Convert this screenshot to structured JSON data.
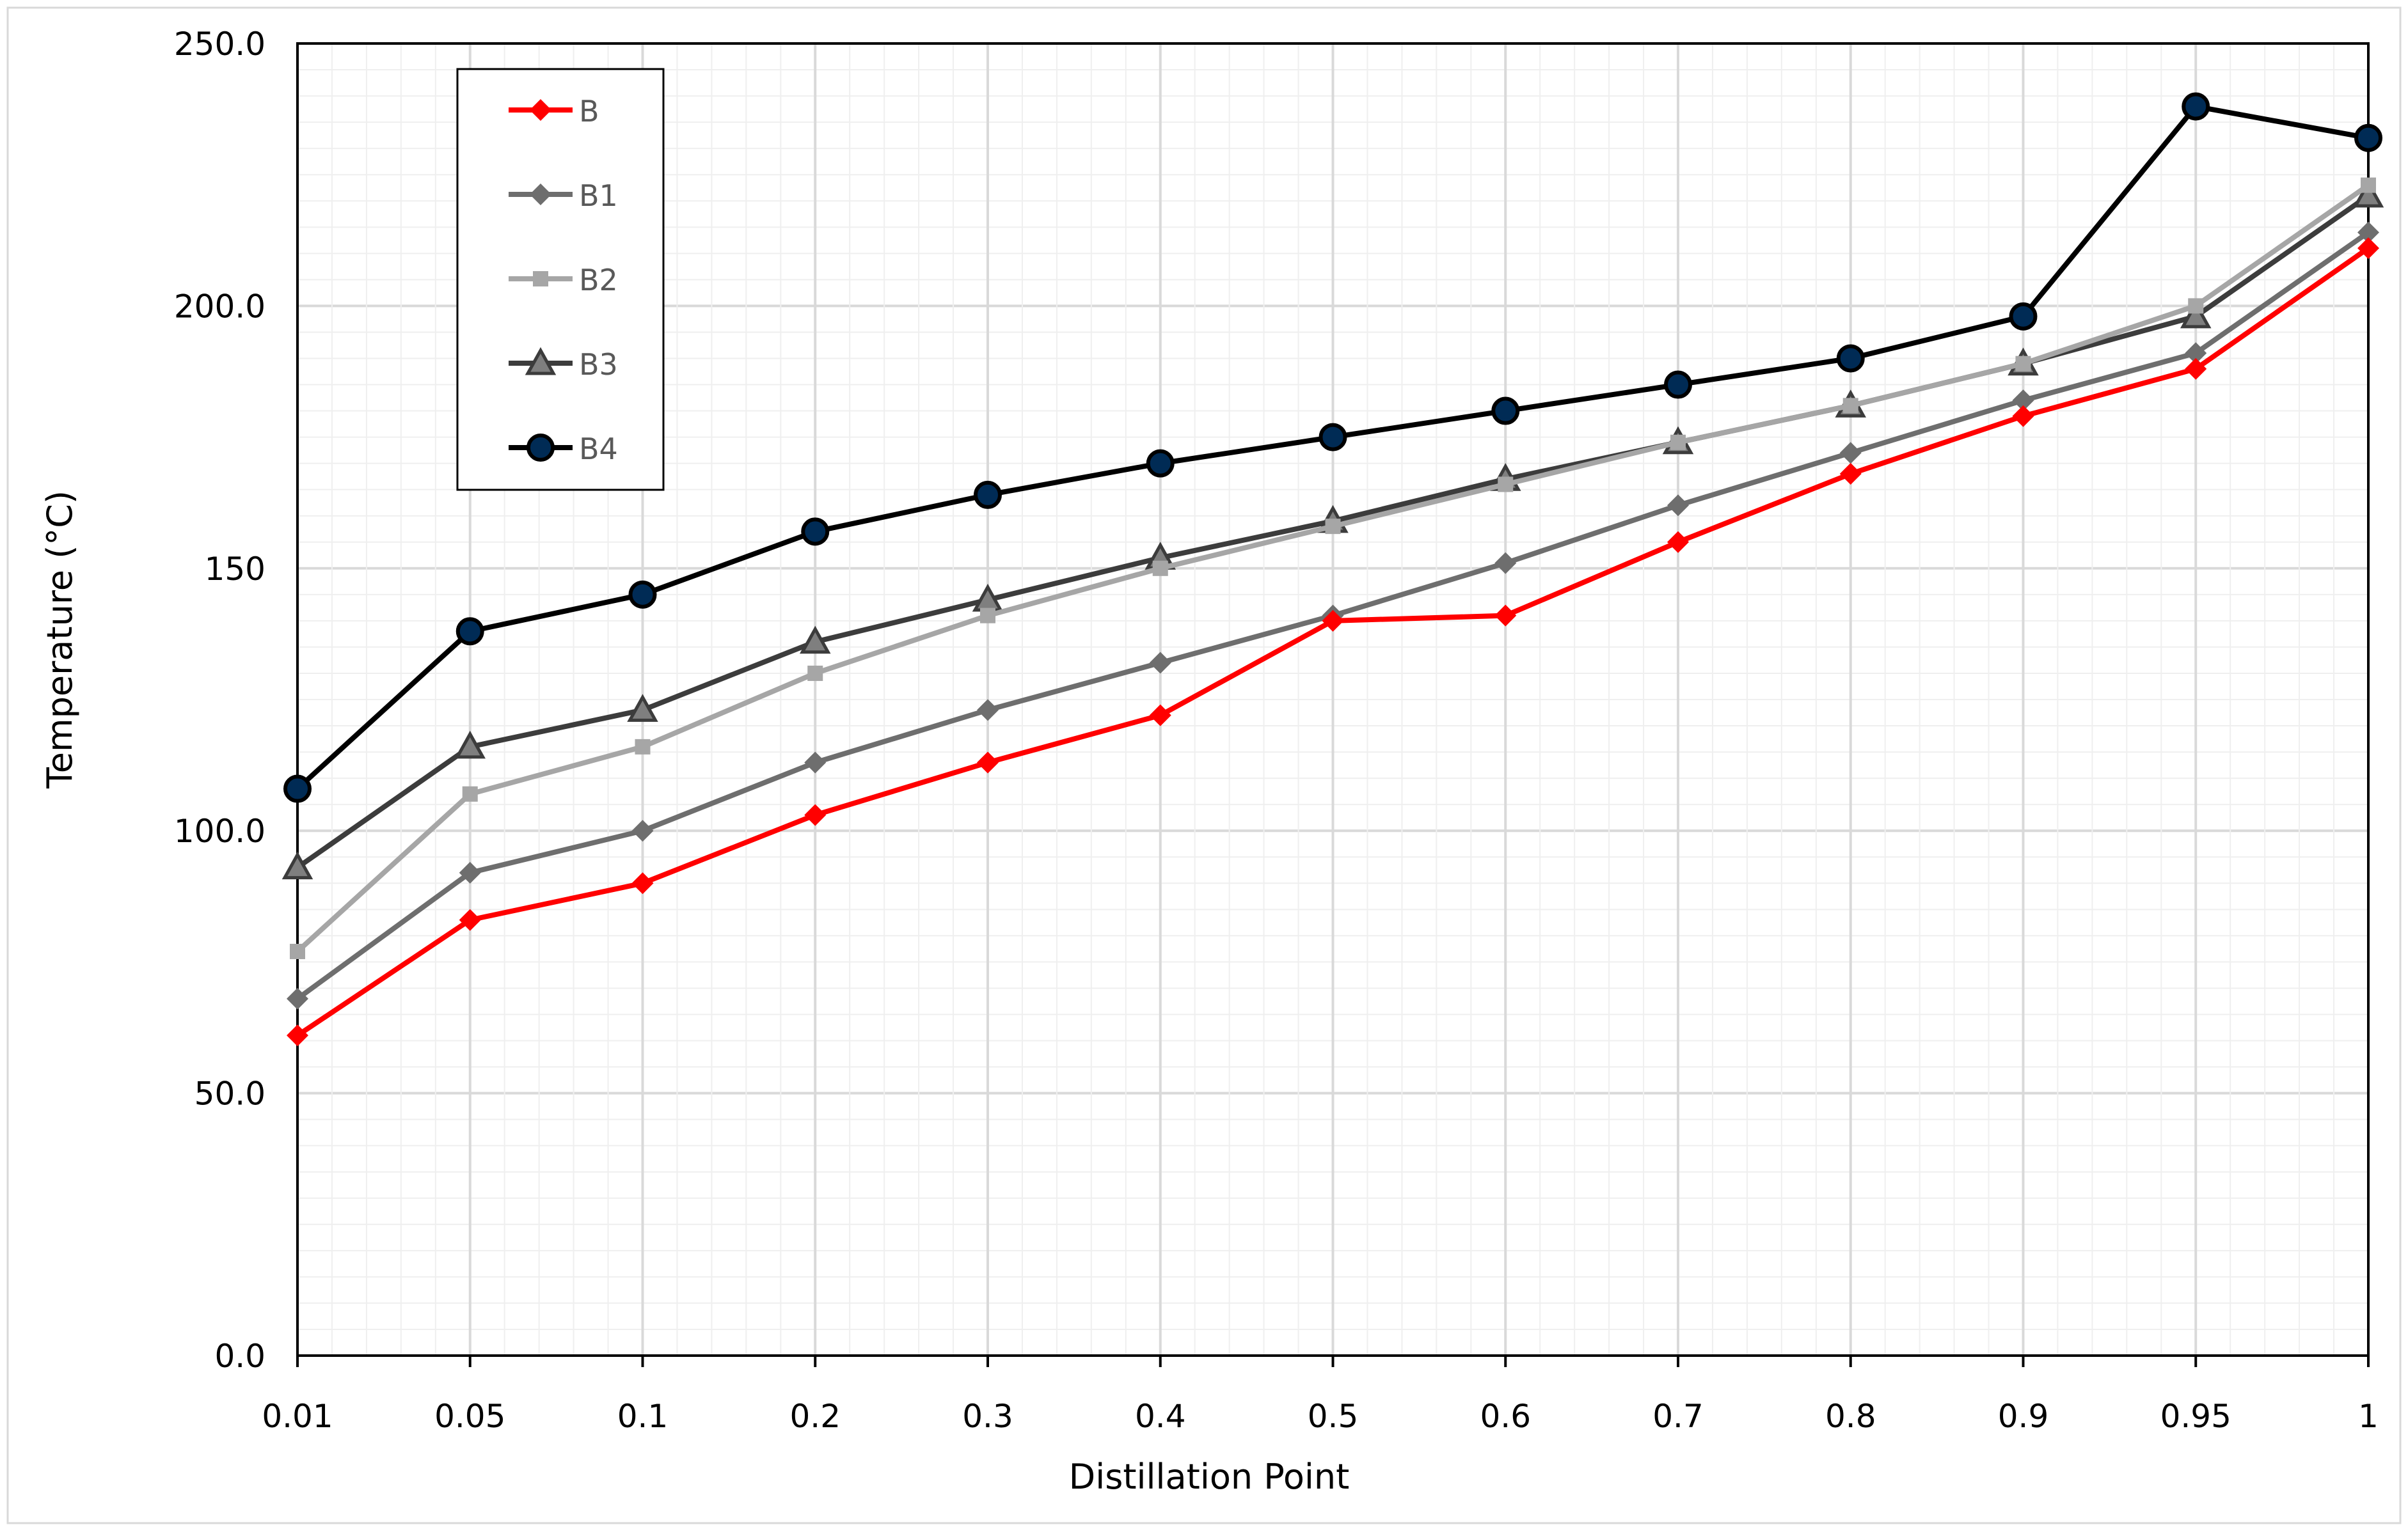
{
  "chart_data": {
    "type": "line",
    "title": "",
    "xlabel": "Distillation Point",
    "ylabel": "Temperature (°C)",
    "categories": [
      "0.01",
      "0.05",
      "0.1",
      "0.2",
      "0.3",
      "0.4",
      "0.5",
      "0.6",
      "0.7",
      "0.8",
      "0.9",
      "0.95",
      "1"
    ],
    "yticks": [
      "0.0",
      "50.0",
      "100.0",
      "150",
      "200.0",
      "250.0"
    ],
    "ylim": [
      0,
      250
    ],
    "grid": true,
    "legend_position": "top-left",
    "series": [
      {
        "name": "B",
        "color": "#ff0000",
        "marker": "diamond",
        "values": [
          61,
          83,
          90,
          103,
          113,
          122,
          140,
          141,
          155,
          168,
          179,
          188,
          211
        ]
      },
      {
        "name": "B1",
        "color": "#6e6e6e",
        "marker": "diamond",
        "values": [
          68,
          92,
          100,
          113,
          123,
          132,
          141,
          151,
          162,
          172,
          182,
          191,
          214
        ]
      },
      {
        "name": "B2",
        "color": "#a6a6a6",
        "marker": "square",
        "values": [
          77,
          107,
          116,
          130,
          141,
          150,
          158,
          166,
          174,
          181,
          189,
          200,
          223
        ]
      },
      {
        "name": "B3",
        "color": "#3c3c3c",
        "marker": "triangle",
        "values": [
          93,
          116,
          123,
          136,
          144,
          152,
          159,
          167,
          174,
          181,
          189,
          198,
          221
        ]
      },
      {
        "name": "B4",
        "color": "#000000",
        "marker": "circle",
        "values": [
          108,
          138,
          145,
          157,
          164,
          170,
          175,
          180,
          185,
          190,
          198,
          238,
          232
        ]
      }
    ]
  }
}
